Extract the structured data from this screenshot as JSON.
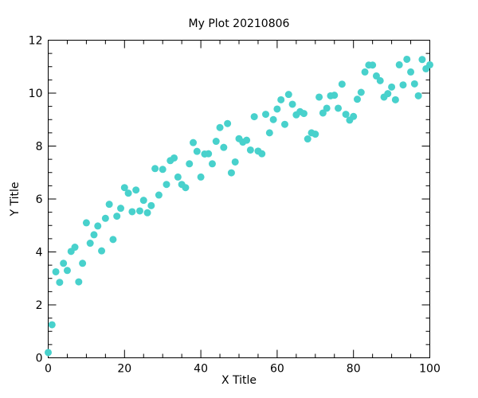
{
  "chart_data": {
    "type": "scatter",
    "title": "My Plot 20210806",
    "xlabel": "X Title",
    "ylabel": "Y Title",
    "xlim": [
      0,
      100
    ],
    "ylim": [
      0,
      12
    ],
    "x_ticks": [
      "0",
      "20",
      "40",
      "60",
      "80",
      "100"
    ],
    "y_ticks": [
      "0",
      "2",
      "4",
      "6",
      "8",
      "10",
      "12"
    ],
    "x_tick_values": [
      0,
      20,
      40,
      60,
      80,
      100
    ],
    "y_tick_values": [
      0,
      2,
      4,
      6,
      8,
      10,
      12
    ],
    "x_minor_step": 5,
    "y_minor_step": 0.5,
    "grid": false,
    "marker_color": "#48d1cc",
    "series": [
      {
        "x": [
          0,
          1,
          2,
          3,
          4,
          5,
          6,
          7,
          8,
          9,
          10,
          11,
          12,
          13,
          14,
          15,
          16,
          17,
          18,
          19,
          20,
          21,
          22,
          23,
          24,
          25,
          26,
          27,
          28,
          29,
          30,
          31,
          32,
          33,
          34,
          35,
          36,
          37,
          38,
          39,
          40,
          41,
          42,
          43,
          44,
          45,
          46,
          47,
          48,
          49,
          50,
          51,
          52,
          53,
          54,
          55,
          56,
          57,
          58,
          59,
          60,
          61,
          62,
          63,
          64,
          65,
          66,
          67,
          68,
          69,
          70,
          71,
          72,
          73,
          74,
          75,
          76,
          77,
          78,
          79,
          80,
          81,
          82,
          83,
          84,
          85,
          86,
          87,
          88,
          89,
          90,
          91,
          92,
          93,
          94,
          95,
          96,
          97,
          98,
          99,
          100
        ],
        "y": [
          0.2,
          1.25,
          3.25,
          2.85,
          3.57,
          3.3,
          4.02,
          4.18,
          2.87,
          3.57,
          5.1,
          4.33,
          4.65,
          4.98,
          4.04,
          5.27,
          5.8,
          4.47,
          5.35,
          5.65,
          6.43,
          6.22,
          5.52,
          6.34,
          5.55,
          5.95,
          5.48,
          5.75,
          7.15,
          6.15,
          7.12,
          6.55,
          7.45,
          7.55,
          6.83,
          6.55,
          6.43,
          7.33,
          8.13,
          7.8,
          6.83,
          7.7,
          7.71,
          7.33,
          8.18,
          8.7,
          7.95,
          8.85,
          6.99,
          7.4,
          8.28,
          8.15,
          8.22,
          7.85,
          9.11,
          7.81,
          7.71,
          9.2,
          8.5,
          9.0,
          9.4,
          9.75,
          8.82,
          9.95,
          9.58,
          9.18,
          9.3,
          9.23,
          8.27,
          8.5,
          8.45,
          9.85,
          9.25,
          9.43,
          9.9,
          9.92,
          9.43,
          10.34,
          9.2,
          8.98,
          9.12,
          9.77,
          10.03,
          10.8,
          11.06,
          11.06,
          10.65,
          10.47,
          9.85,
          9.98,
          10.23,
          9.75,
          11.07,
          10.31,
          11.28,
          10.8,
          10.35,
          9.9,
          11.27,
          10.92,
          11.07
        ]
      }
    ]
  }
}
